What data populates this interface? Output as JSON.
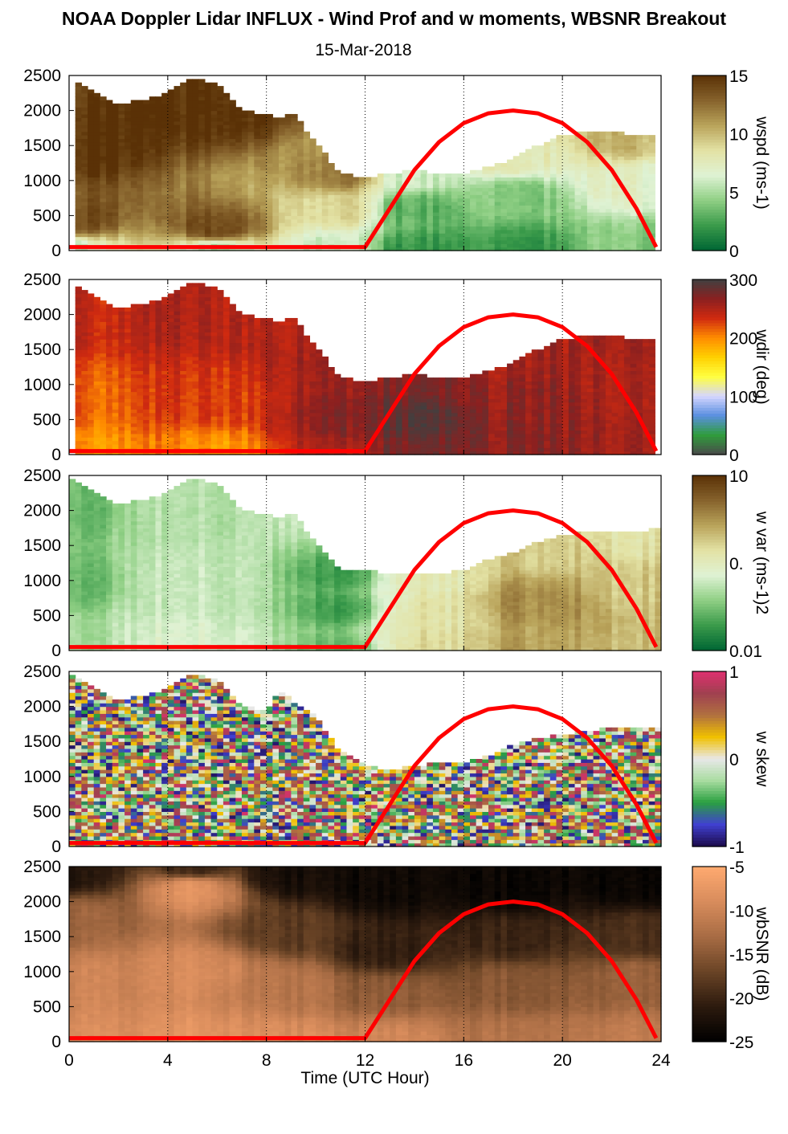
{
  "title": "NOAA Doppler Lidar INFLUX - Wind Prof and w moments, WBSNR Breakout",
  "subtitle": "15-Mar-2018",
  "xlabel": "Time (UTC Hour)",
  "colors": {
    "sun_curve": "#ff0000",
    "grid": "#000000",
    "missing": "#ffffff"
  },
  "chart_data": [
    {
      "type": "heatmap",
      "name": "wspd",
      "colorbar_label": "wspd (ms-1)",
      "colorbar_ticks": [
        "15",
        "10",
        "5",
        "0"
      ],
      "clim": [
        0,
        15
      ],
      "x": {
        "range": [
          0,
          24
        ],
        "ticks": [
          0,
          4,
          8,
          12,
          16,
          20,
          24
        ],
        "grid": "dotted"
      },
      "y": {
        "range": [
          0,
          2500
        ],
        "ticks": [
          0,
          500,
          1000,
          1500,
          2000,
          2500
        ]
      },
      "colormap": [
        "#006634",
        "#3a9a4a",
        "#8fcf84",
        "#dff2d4",
        "#e3e2a4",
        "#b9a35a",
        "#86622c",
        "#5a3106"
      ],
      "data_top_m": [
        [
          0.2,
          2450
        ],
        [
          1,
          2250
        ],
        [
          2,
          2100
        ],
        [
          3,
          2150
        ],
        [
          4,
          2250
        ],
        [
          5,
          2450
        ],
        [
          6,
          2400
        ],
        [
          7,
          2000
        ],
        [
          8,
          1950
        ],
        [
          8.5,
          1850
        ],
        [
          9,
          2000
        ],
        [
          10,
          1550
        ],
        [
          11,
          1100
        ],
        [
          12,
          1050
        ],
        [
          13,
          1100
        ],
        [
          14,
          1150
        ],
        [
          15,
          1100
        ],
        [
          16,
          1100
        ],
        [
          17,
          1200
        ],
        [
          18,
          1300
        ],
        [
          19,
          1500
        ],
        [
          20,
          1650
        ],
        [
          21,
          1700
        ],
        [
          22,
          1700
        ],
        [
          23,
          1650
        ],
        [
          23.7,
          1650
        ]
      ],
      "fields": [
        {
          "t": 0,
          "z": 0,
          "v": 6
        },
        {
          "t": 0,
          "z": 400,
          "v": 14
        },
        {
          "t": 0,
          "z": 1500,
          "v": 15
        },
        {
          "t": 6,
          "z": 0,
          "v": 5
        },
        {
          "t": 6,
          "z": 300,
          "v": 14
        },
        {
          "t": 6,
          "z": 2000,
          "v": 15
        },
        {
          "t": 11,
          "z": 0,
          "v": 6
        },
        {
          "t": 11,
          "z": 600,
          "v": 9
        },
        {
          "t": 11,
          "z": 1100,
          "v": 12
        },
        {
          "t": 14,
          "z": 0,
          "v": 2
        },
        {
          "t": 14,
          "z": 600,
          "v": 3
        },
        {
          "t": 14,
          "z": 1100,
          "v": 6
        },
        {
          "t": 18,
          "z": 0,
          "v": 2
        },
        {
          "t": 18,
          "z": 800,
          "v": 4
        },
        {
          "t": 18,
          "z": 1300,
          "v": 8
        },
        {
          "t": 23,
          "z": 0,
          "v": 4
        },
        {
          "t": 23,
          "z": 1000,
          "v": 7
        },
        {
          "t": 23,
          "z": 1600,
          "v": 10
        }
      ]
    },
    {
      "type": "heatmap",
      "name": "wdir",
      "colorbar_label": "wdir (deg)",
      "colorbar_ticks": [
        "300",
        "200",
        "100",
        "0"
      ],
      "clim": [
        0,
        360
      ],
      "x": {
        "range": [
          0,
          24
        ],
        "ticks": [
          0,
          4,
          8,
          12,
          16,
          20,
          24
        ],
        "grid": "dotted"
      },
      "y": {
        "range": [
          0,
          2500
        ],
        "ticks": [
          0,
          500,
          1000,
          1500,
          2000,
          2500
        ]
      },
      "colormap": [
        "#4a4a4a",
        "#2f9d3c",
        "#5a8fe0",
        "#d6d6ff",
        "#ffff40",
        "#ffd000",
        "#ff8c00",
        "#d02a10",
        "#8a2020",
        "#404040"
      ],
      "data_top_m": [
        [
          0.2,
          2450
        ],
        [
          1,
          2250
        ],
        [
          2,
          2100
        ],
        [
          3,
          2150
        ],
        [
          4,
          2250
        ],
        [
          5,
          2450
        ],
        [
          6,
          2400
        ],
        [
          7,
          2000
        ],
        [
          8,
          1950
        ],
        [
          8.5,
          1850
        ],
        [
          9,
          2000
        ],
        [
          10,
          1550
        ],
        [
          11,
          1100
        ],
        [
          12,
          1050
        ],
        [
          13,
          1100
        ],
        [
          14,
          1150
        ],
        [
          15,
          1100
        ],
        [
          16,
          1100
        ],
        [
          17,
          1200
        ],
        [
          18,
          1300
        ],
        [
          19,
          1500
        ],
        [
          20,
          1650
        ],
        [
          21,
          1700
        ],
        [
          22,
          1700
        ],
        [
          23,
          1650
        ],
        [
          23.7,
          1650
        ]
      ],
      "fields": [
        {
          "t": 0,
          "z": 0,
          "v": 235
        },
        {
          "t": 0,
          "z": 800,
          "v": 260
        },
        {
          "t": 0,
          "z": 2000,
          "v": 290
        },
        {
          "t": 6,
          "z": 0,
          "v": 235
        },
        {
          "t": 6,
          "z": 800,
          "v": 275
        },
        {
          "t": 6,
          "z": 2000,
          "v": 300
        },
        {
          "t": 11,
          "z": 0,
          "v": 300
        },
        {
          "t": 11,
          "z": 500,
          "v": 320
        },
        {
          "t": 11,
          "z": 1100,
          "v": 310
        },
        {
          "t": 14,
          "z": 0,
          "v": 330
        },
        {
          "t": 14,
          "z": 500,
          "v": 345
        },
        {
          "t": 14,
          "z": 1100,
          "v": 325
        },
        {
          "t": 18,
          "z": 0,
          "v": 320
        },
        {
          "t": 18,
          "z": 800,
          "v": 315
        },
        {
          "t": 18,
          "z": 1300,
          "v": 305
        },
        {
          "t": 23,
          "z": 0,
          "v": 305
        },
        {
          "t": 23,
          "z": 1000,
          "v": 300
        },
        {
          "t": 23,
          "z": 1600,
          "v": 305
        }
      ]
    },
    {
      "type": "heatmap",
      "name": "w var",
      "colorbar_label": "w var (ms-1)2",
      "colorbar_ticks": [
        "10",
        "0.",
        "0.01"
      ],
      "clim": [
        0.01,
        10
      ],
      "x": {
        "range": [
          0,
          24
        ],
        "ticks": [
          0,
          4,
          8,
          12,
          16,
          20,
          24
        ],
        "grid": "dotted"
      },
      "y": {
        "range": [
          0,
          2500
        ],
        "ticks": [
          0,
          500,
          1000,
          1500,
          2000,
          2500
        ]
      },
      "colormap": [
        "#006634",
        "#3a9a4a",
        "#8fcf84",
        "#dff2d4",
        "#e3e2a4",
        "#b9a35a",
        "#86622c",
        "#5a3106"
      ],
      "data_top_m": [
        [
          0.2,
          2450
        ],
        [
          1,
          2250
        ],
        [
          2,
          2100
        ],
        [
          3,
          2150
        ],
        [
          4,
          2250
        ],
        [
          5,
          2450
        ],
        [
          6,
          2400
        ],
        [
          7,
          2000
        ],
        [
          8,
          1950
        ],
        [
          8.5,
          1850
        ],
        [
          9,
          2000
        ],
        [
          10,
          1550
        ],
        [
          11,
          1150
        ],
        [
          12,
          1150
        ],
        [
          13,
          1100
        ],
        [
          14,
          1100
        ],
        [
          15,
          1100
        ],
        [
          16,
          1150
        ],
        [
          17,
          1300
        ],
        [
          18,
          1400
        ],
        [
          19,
          1550
        ],
        [
          20,
          1650
        ],
        [
          21,
          1700
        ],
        [
          22,
          1700
        ],
        [
          23,
          1700
        ],
        [
          24,
          1750
        ]
      ],
      "fields": [
        {
          "t": 0,
          "z": 0,
          "v": 0.1
        },
        {
          "t": 0,
          "z": 1000,
          "v": 0.05
        },
        {
          "t": 0,
          "z": 2000,
          "v": 0.05
        },
        {
          "t": 5,
          "z": 0,
          "v": 0.2
        },
        {
          "t": 5,
          "z": 1000,
          "v": 0.15
        },
        {
          "t": 5,
          "z": 2000,
          "v": 0.12
        },
        {
          "t": 11,
          "z": 0,
          "v": 0.05
        },
        {
          "t": 11,
          "z": 600,
          "v": 0.03
        },
        {
          "t": 11,
          "z": 1100,
          "v": 0.03
        },
        {
          "t": 15,
          "z": 0,
          "v": 0.6
        },
        {
          "t": 15,
          "z": 500,
          "v": 0.5
        },
        {
          "t": 15,
          "z": 1000,
          "v": 0.4
        },
        {
          "t": 19,
          "z": 0,
          "v": 1.5
        },
        {
          "t": 19,
          "z": 700,
          "v": 2.0
        },
        {
          "t": 19,
          "z": 1400,
          "v": 0.8
        },
        {
          "t": 23,
          "z": 0,
          "v": 1.0
        },
        {
          "t": 23,
          "z": 900,
          "v": 0.8
        },
        {
          "t": 23,
          "z": 1600,
          "v": 0.5
        }
      ]
    },
    {
      "type": "heatmap",
      "name": "w skew",
      "colorbar_label": "w skew",
      "colorbar_ticks": [
        "1",
        "0",
        "-1"
      ],
      "clim": [
        -1,
        1
      ],
      "x": {
        "range": [
          0,
          24
        ],
        "ticks": [
          0,
          4,
          8,
          12,
          16,
          20,
          24
        ],
        "grid": "dotted"
      },
      "y": {
        "range": [
          0,
          2500
        ],
        "ticks": [
          0,
          500,
          1000,
          1500,
          2000,
          2500
        ]
      },
      "colormap": [
        "#1c0a4a",
        "#4040d0",
        "#2aa040",
        "#a8dca0",
        "#e8e8e8",
        "#f0c000",
        "#b07040",
        "#a04050",
        "#e03070"
      ],
      "data_top_m": [
        [
          0.2,
          2450
        ],
        [
          1,
          2250
        ],
        [
          2,
          2100
        ],
        [
          3,
          2150
        ],
        [
          4,
          2250
        ],
        [
          5,
          2450
        ],
        [
          6,
          2400
        ],
        [
          7,
          2000
        ],
        [
          8,
          1950
        ],
        [
          8.5,
          2200
        ],
        [
          9,
          2100
        ],
        [
          10,
          1850
        ],
        [
          11,
          1350
        ],
        [
          12,
          1150
        ],
        [
          13,
          1100
        ],
        [
          14,
          1150
        ],
        [
          15,
          1200
        ],
        [
          16,
          1200
        ],
        [
          17,
          1300
        ],
        [
          18,
          1450
        ],
        [
          19,
          1550
        ],
        [
          20,
          1600
        ],
        [
          21,
          1650
        ],
        [
          22,
          1700
        ],
        [
          23,
          1700
        ],
        [
          24,
          1700
        ]
      ],
      "fields": [
        {
          "t": 0,
          "z": 0,
          "v": 0.1
        },
        {
          "t": 12,
          "z": 0,
          "v": 0.0
        },
        {
          "t": 20,
          "z": 0,
          "v": 0.3
        }
      ]
    },
    {
      "type": "heatmap",
      "name": "wbSNR",
      "colorbar_label": "wbSNR (dB)",
      "colorbar_ticks": [
        "-5",
        "-10",
        "-15",
        "-20",
        "-25"
      ],
      "clim": [
        -25,
        -5
      ],
      "x": {
        "range": [
          0,
          24
        ],
        "ticks": [
          0,
          4,
          8,
          12,
          16,
          20,
          24
        ],
        "grid": "dotted"
      },
      "y": {
        "range": [
          0,
          2500
        ],
        "ticks": [
          0,
          500,
          1000,
          1500,
          2000,
          2500
        ]
      },
      "colormap": [
        "#000000",
        "#2c1a0e",
        "#6a4426",
        "#a86c44",
        "#d88c5c",
        "#ffaa70"
      ],
      "data_top_m": [
        [
          0,
          2500
        ],
        [
          24,
          2500
        ]
      ],
      "fields": [
        {
          "t": 0,
          "z": 0,
          "v": -9
        },
        {
          "t": 0,
          "z": 800,
          "v": -10
        },
        {
          "t": 0,
          "z": 1800,
          "v": -14
        },
        {
          "t": 0,
          "z": 2400,
          "v": -22
        },
        {
          "t": 5,
          "z": 0,
          "v": -8
        },
        {
          "t": 5,
          "z": 1000,
          "v": -9
        },
        {
          "t": 5,
          "z": 2200,
          "v": -8
        },
        {
          "t": 5,
          "z": 2500,
          "v": -20
        },
        {
          "t": 9,
          "z": 0,
          "v": -9
        },
        {
          "t": 9,
          "z": 800,
          "v": -12
        },
        {
          "t": 9,
          "z": 1600,
          "v": -18
        },
        {
          "t": 9,
          "z": 2400,
          "v": -23
        },
        {
          "t": 13,
          "z": 0,
          "v": -10
        },
        {
          "t": 13,
          "z": 700,
          "v": -15
        },
        {
          "t": 13,
          "z": 1300,
          "v": -21
        },
        {
          "t": 13,
          "z": 2200,
          "v": -24
        },
        {
          "t": 18,
          "z": 0,
          "v": -12
        },
        {
          "t": 18,
          "z": 800,
          "v": -15
        },
        {
          "t": 18,
          "z": 1500,
          "v": -20
        },
        {
          "t": 18,
          "z": 2200,
          "v": -24
        },
        {
          "t": 23,
          "z": 0,
          "v": -11
        },
        {
          "t": 23,
          "z": 900,
          "v": -14
        },
        {
          "t": 23,
          "z": 1500,
          "v": -19
        },
        {
          "t": 23,
          "z": 2300,
          "v": -24
        }
      ]
    }
  ],
  "overlay": {
    "type": "line",
    "series_points": [
      [
        0,
        50
      ],
      [
        12,
        50
      ],
      [
        13,
        600
      ],
      [
        14,
        1150
      ],
      [
        15,
        1550
      ],
      [
        16,
        1820
      ],
      [
        17,
        1960
      ],
      [
        18,
        2000
      ],
      [
        19,
        1960
      ],
      [
        20,
        1820
      ],
      [
        21,
        1550
      ],
      [
        22,
        1150
      ],
      [
        23,
        600
      ],
      [
        23.8,
        50
      ]
    ]
  }
}
